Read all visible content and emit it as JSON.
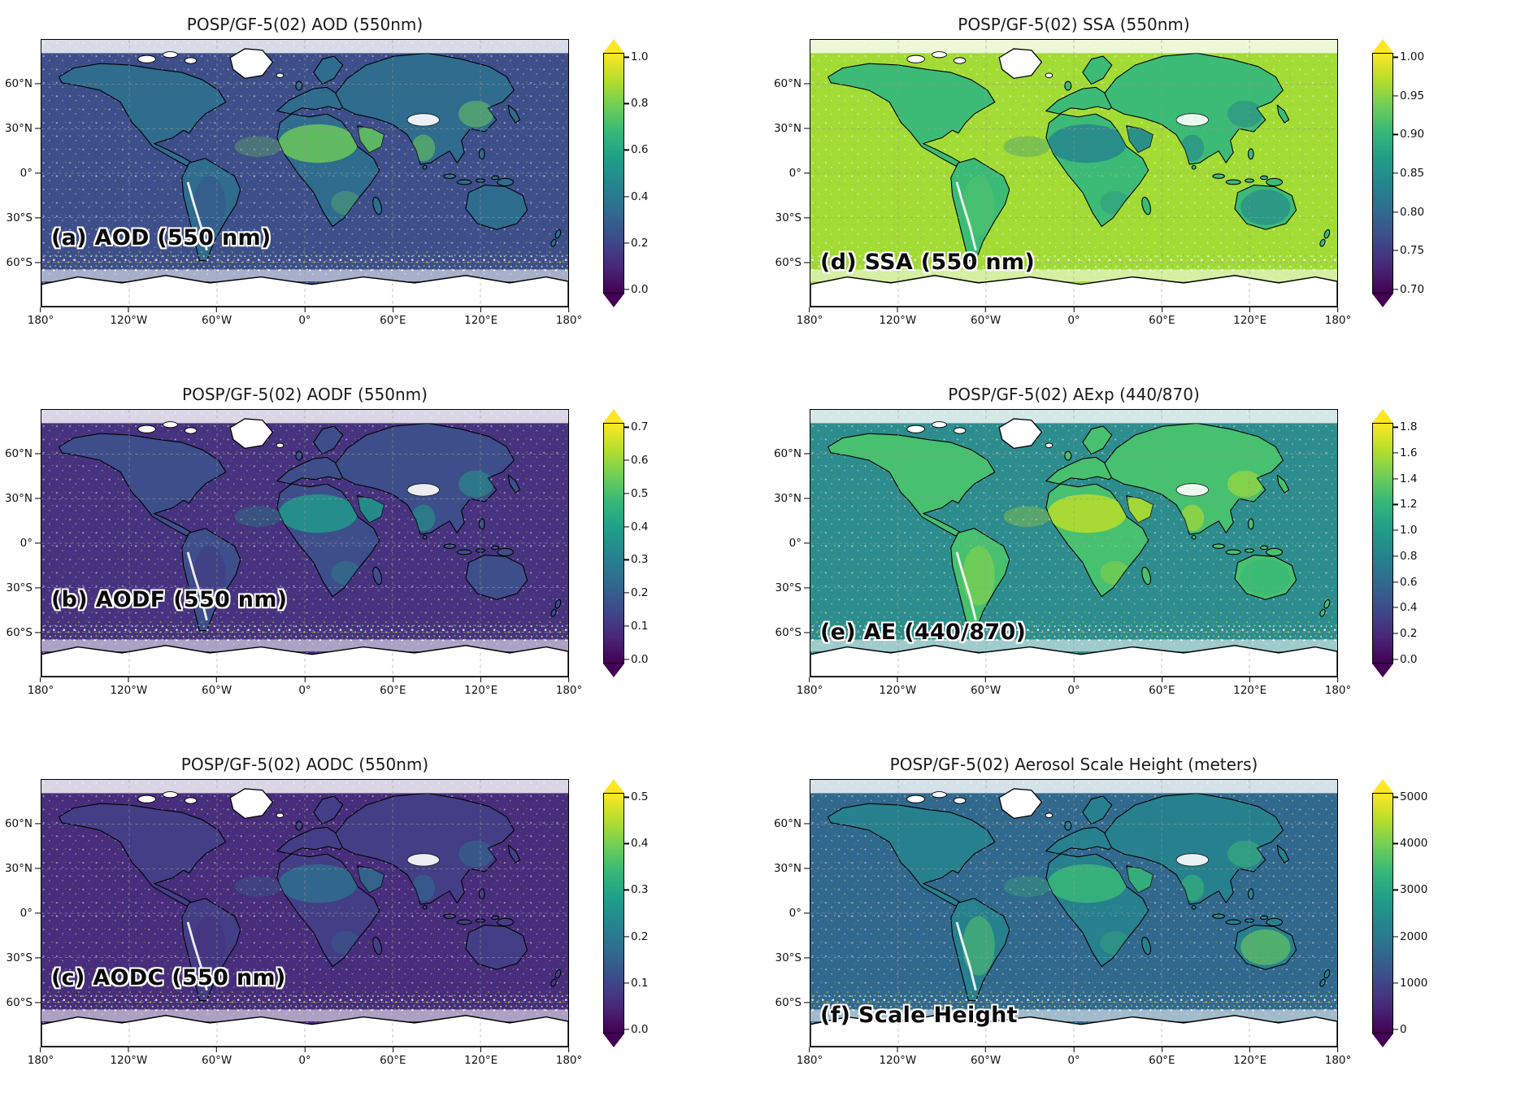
{
  "figure": {
    "colormap": "viridis",
    "projection": "equirectangular"
  },
  "axes": {
    "lat_ticks": [
      "60°N",
      "30°N",
      "0°",
      "30°S",
      "60°S"
    ],
    "lat_pos": [
      16.67,
      33.33,
      50,
      66.67,
      83.33
    ],
    "lon_ticks": [
      "180°",
      "120°W",
      "60°W",
      "0°",
      "60°E",
      "120°E",
      "180°"
    ],
    "lon_pos": [
      0,
      16.67,
      33.33,
      50,
      66.67,
      83.33,
      100
    ]
  },
  "chart_data": [
    {
      "type": "heatmap",
      "title": "POSP/GF-5(02) AOD (550nm)",
      "annotation": "(a) AOD (550 nm)",
      "colormap": "viridis",
      "colorbar_ticks": [
        "1.0",
        "0.8",
        "0.6",
        "0.4",
        "0.2",
        "0.0"
      ],
      "value_range": [
        0.0,
        1.0
      ],
      "colors": {
        "ocean": "#3d4e8a",
        "land": "#2f6c8e",
        "hot": "#6ece58",
        "sa": "#39568c",
        "aus": "#2f6c8e"
      }
    },
    {
      "type": "heatmap",
      "title": "POSP/GF-5(02) AODF (550nm)",
      "annotation": "(b) AODF (550 nm)",
      "colormap": "viridis",
      "colorbar_ticks": [
        "0.7",
        "0.6",
        "0.5",
        "0.4",
        "0.3",
        "0.2",
        "0.1",
        "0.0"
      ],
      "value_range": [
        0.0,
        0.7
      ],
      "colors": {
        "ocean": "#46327e",
        "land": "#3d4e8a",
        "hot": "#1f9e89",
        "sa": "#453781",
        "aus": "#3d4e8a"
      }
    },
    {
      "type": "heatmap",
      "title": "POSP/GF-5(02) AODC (550nm)",
      "annotation": "(c) AODC (550 nm)",
      "colormap": "viridis",
      "colorbar_ticks": [
        "0.5",
        "0.4",
        "0.3",
        "0.2",
        "0.1",
        "0.0"
      ],
      "value_range": [
        0.0,
        0.5
      ],
      "colors": {
        "ocean": "#472d7b",
        "land": "#433e85",
        "hot": "#2d708e",
        "sa": "#46327e",
        "aus": "#433e85"
      }
    },
    {
      "type": "heatmap",
      "title": "POSP/GF-5(02) SSA (550nm)",
      "annotation": "(d) SSA (550 nm)",
      "colormap": "viridis",
      "colorbar_ticks": [
        "1.00",
        "0.95",
        "0.90",
        "0.85",
        "0.80",
        "0.75",
        "0.70"
      ],
      "value_range": [
        0.7,
        1.0
      ],
      "colors": {
        "ocean": "#a2db34",
        "land": "#3bbb75",
        "hot": "#26828e",
        "sa": "#52c569",
        "aus": "#26828e"
      }
    },
    {
      "type": "heatmap",
      "title": "POSP/GF-5(02) AExp (440/870)",
      "annotation": "(e) AE (440/870)",
      "colormap": "viridis",
      "colorbar_ticks": [
        "1.8",
        "1.6",
        "1.4",
        "1.2",
        "1.0",
        "0.8",
        "0.6",
        "0.4",
        "0.2",
        "0.0"
      ],
      "value_range": [
        0.0,
        1.8
      ],
      "colors": {
        "ocean": "#2c8c8e",
        "land": "#47c06f",
        "hot": "#c0df25",
        "sa": "#8ed645",
        "aus": "#35b779"
      }
    },
    {
      "type": "heatmap",
      "title": "POSP/GF-5(02) Aerosol Scale Height (meters)",
      "annotation": "(f) Scale Height",
      "colormap": "viridis",
      "colorbar_ticks": [
        "5000",
        "4000",
        "3000",
        "2000",
        "1000",
        "0"
      ],
      "value_range": [
        0,
        5000
      ],
      "colors": {
        "ocean": "#31688e",
        "land": "#27808e",
        "hot": "#3bbb75",
        "sa": "#52c569",
        "aus": "#6ece58"
      }
    }
  ]
}
